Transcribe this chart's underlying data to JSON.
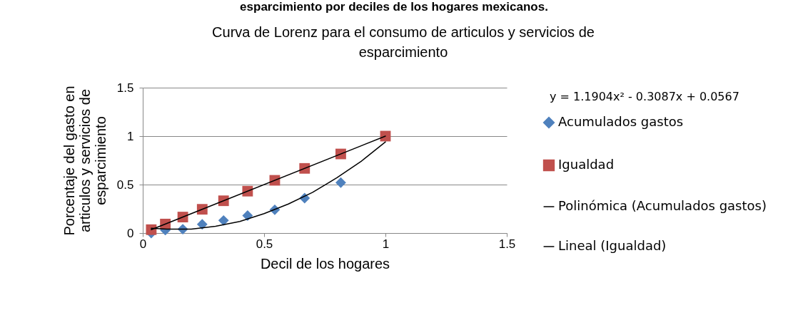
{
  "chart_data": {
    "type": "scatter",
    "title": "Curva de Lorenz para el consumo de articulos y servicios de esparcimiento",
    "xlabel": "Decil de los hogares",
    "ylabel": "Porcentaje del gasto en articulos y servicios de esparcimiento",
    "annotations": [
      "esparcimiento por deciles de los hogares mexicanos.",
      "y = 1.1904x² - 0.3087x + 0.0567"
    ],
    "xlim": [
      0,
      1.5
    ],
    "xticks": [
      0,
      0.5,
      1,
      1.5
    ],
    "ylim": [
      0,
      1.5
    ],
    "yticks": [
      0,
      0.5,
      1,
      1.5
    ],
    "grid": "y",
    "legend": "right",
    "series": [
      {
        "name": "Acumulados gastos",
        "color": "#4f81bd",
        "marker": "diamond",
        "x": [
          0.035,
          0.093,
          0.165,
          0.245,
          0.333,
          0.432,
          0.544,
          0.667,
          0.816
        ],
        "values": [
          0.0,
          0.03,
          0.04,
          0.09,
          0.13,
          0.18,
          0.24,
          0.36,
          0.52
        ]
      },
      {
        "name": "Igualdad",
        "color": "#c0504d",
        "marker": "square",
        "x": [
          0.035,
          0.093,
          0.165,
          0.245,
          0.333,
          0.432,
          0.544,
          0.667,
          0.816,
          1
        ],
        "values": [
          0.035,
          0.093,
          0.165,
          0.245,
          0.333,
          0.432,
          0.544,
          0.667,
          0.816,
          1
        ]
      },
      {
        "name": "Polinómica (Acumulados gastos)",
        "type": "line",
        "color": "#000000",
        "marker": "none",
        "x": [
          0.035,
          0.1,
          0.2,
          0.3,
          0.4,
          0.5,
          0.6,
          0.7,
          0.8,
          0.9,
          1
        ],
        "values": [
          0.05,
          0.04,
          0.04,
          0.07,
          0.12,
          0.2,
          0.3,
          0.42,
          0.57,
          0.74,
          0.94
        ]
      },
      {
        "name": "Lineal (Igualdad)",
        "type": "line",
        "color": "#000000",
        "marker": "none",
        "x": [
          0.035,
          1
        ],
        "values": [
          0.035,
          1
        ]
      }
    ]
  }
}
